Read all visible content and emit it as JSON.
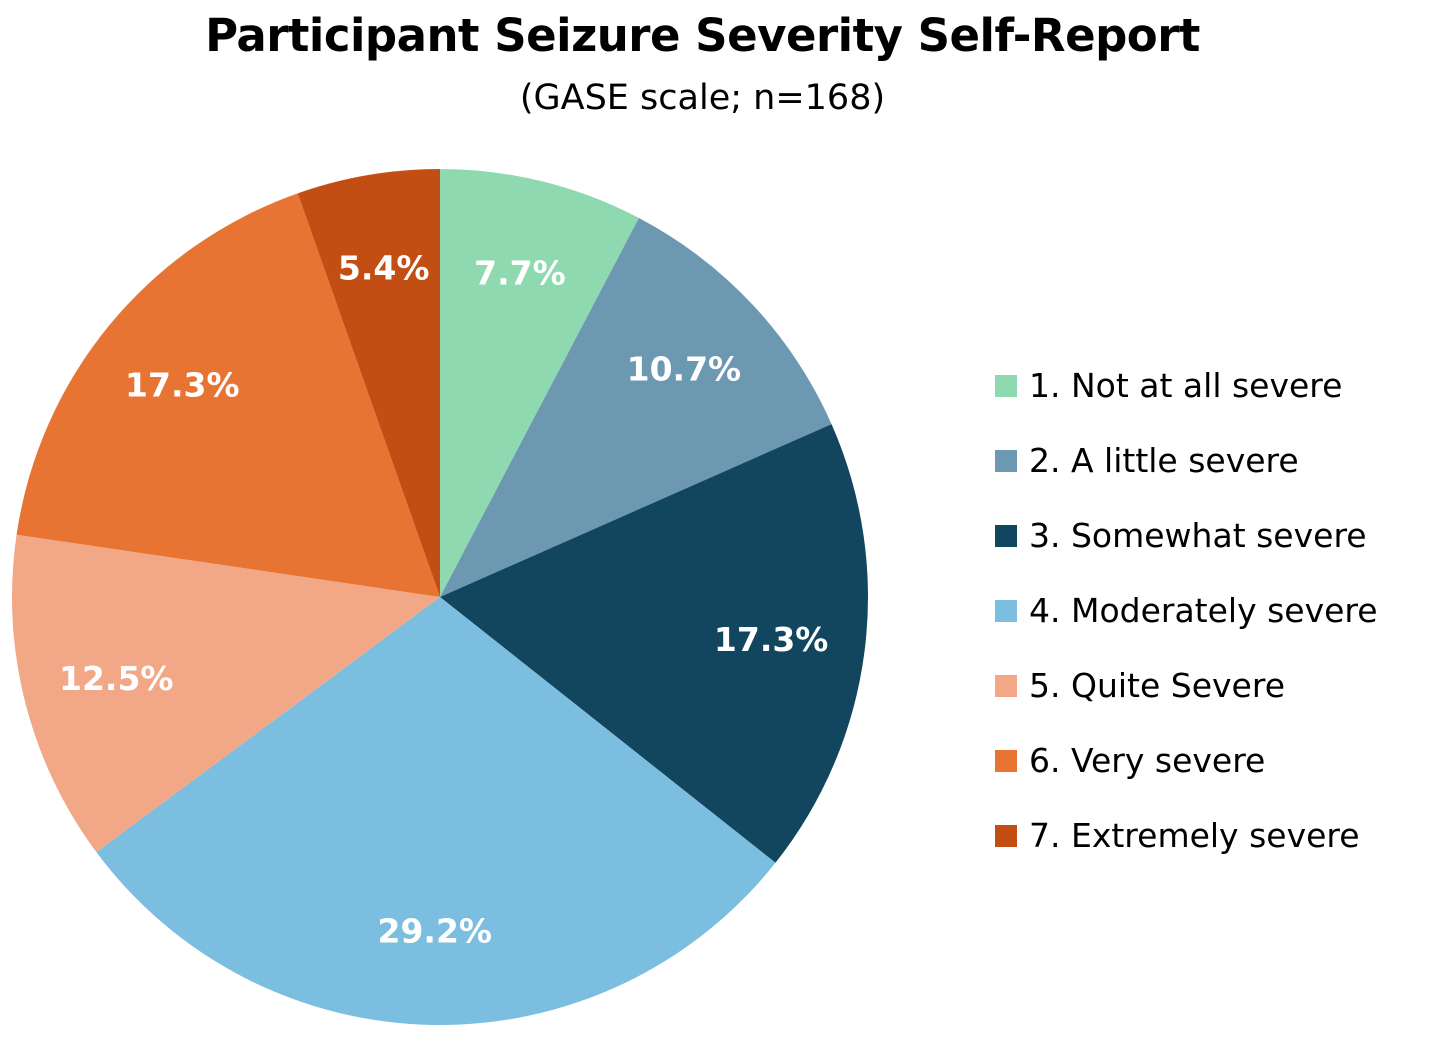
{
  "chart_data": {
    "type": "pie",
    "title": "Participant Seizure Severity Self-Report",
    "subtitle": "(GASE scale; n=168)",
    "legend_position": "right",
    "slices": [
      {
        "label": "1. Not at all severe",
        "value": 7.7,
        "display": "7.7%",
        "color": "#8fd9b0"
      },
      {
        "label": "2. A little severe",
        "value": 10.7,
        "display": "10.7%",
        "color": "#6c99b1"
      },
      {
        "label": "3. Somewhat severe",
        "value": 17.3,
        "display": "17.3%",
        "color": "#12465f"
      },
      {
        "label": "4. Moderately severe",
        "value": 29.2,
        "display": "29.2%",
        "color": "#7bbedf"
      },
      {
        "label": "5. Quite Severe",
        "value": 12.5,
        "display": "12.5%",
        "color": "#f2a886"
      },
      {
        "label": "6. Very severe",
        "value": 17.3,
        "display": "17.3%",
        "color": "#e87434"
      },
      {
        "label": "7. Extremely severe",
        "value": 5.4,
        "display": "5.4%",
        "color": "#c24e14"
      }
    ]
  }
}
